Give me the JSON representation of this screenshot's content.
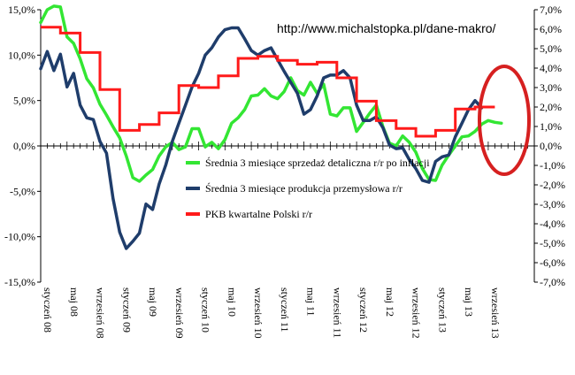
{
  "annotation_url": "http://www.michalstopka.pl/dane-makro/",
  "colors": {
    "retail": "#33e633",
    "production": "#1f3d6b",
    "gdp": "#ff1a1a",
    "ellipse": "#d62020",
    "axis": "#000000",
    "background": "#ffffff"
  },
  "chart_data": {
    "type": "line",
    "title": "",
    "xlabel": "",
    "ylabel": "",
    "x_tick_labels": [
      "styczeń 08",
      "maj 08",
      "wrzesień 08",
      "styczeń 09",
      "maj 09",
      "wrzesień 09",
      "styczeń 10",
      "maj 10",
      "wrzesień 10",
      "styczeń 11",
      "maj 11",
      "wrzesień 11",
      "styczeń 12",
      "maj 12",
      "wrzesień 12",
      "styczeń 13",
      "maj 13",
      "wrzesień 13"
    ],
    "x_tick_months": [
      0,
      4,
      8,
      12,
      16,
      20,
      24,
      28,
      32,
      36,
      40,
      44,
      48,
      52,
      56,
      60,
      64,
      68
    ],
    "x_range_months": [
      0,
      75
    ],
    "y_left": {
      "range": [
        -15,
        15
      ],
      "step": 5,
      "tick_labels": [
        "-15,0%",
        "-10,0%",
        "-5,0%",
        "0,0%",
        "5,0%",
        "10,0%",
        "15,0%"
      ]
    },
    "y_right": {
      "range": [
        -7,
        7
      ],
      "step": 1,
      "tick_labels": [
        "-7,0%",
        "-6,0%",
        "-5,0%",
        "-4,0%",
        "-3,0%",
        "-2,0%",
        "-1,0%",
        "0,0%",
        "1,0%",
        "2,0%",
        "3,0%",
        "4,0%",
        "5,0%",
        "6,0%",
        "7,0%"
      ]
    },
    "grid": false,
    "legend_position": "center",
    "series": [
      {
        "name": "Średnia 3 miesiące sprzedaż detaliczna r/r po inflacji",
        "axis": "left",
        "color_key": "retail",
        "start_month": 0,
        "values": [
          13.6,
          15.0,
          15.4,
          15.3,
          12.0,
          11.3,
          9.6,
          7.4,
          6.4,
          4.6,
          3.4,
          2.1,
          0.9,
          -1.1,
          -3.5,
          -3.9,
          -3.2,
          -2.6,
          -1.1,
          -0.1,
          0.4,
          -0.4,
          -0.1,
          1.9,
          1.9,
          -0.1,
          0.4,
          -0.3,
          0.7,
          2.5,
          3.1,
          4.0,
          5.5,
          5.6,
          6.3,
          5.5,
          5.2,
          6.0,
          7.5,
          6.1,
          5.6,
          7.0,
          5.8,
          6.8,
          3.5,
          3.3,
          4.2,
          4.2,
          1.6,
          2.6,
          3.6,
          4.5,
          2.1,
          0.3,
          0.0,
          1.1,
          0.4,
          -0.7,
          -2.5,
          -3.7,
          -3.8,
          -2.1,
          -1.0,
          0.0,
          1.0,
          1.1,
          1.6,
          2.4,
          2.8,
          2.6,
          2.5
        ]
      },
      {
        "name": "Średnia 3 miesiące produkcja przemysłowa r/r",
        "axis": "left",
        "color_key": "production",
        "start_month": 0,
        "values": [
          8.5,
          10.4,
          8.3,
          10.1,
          6.5,
          8.0,
          4.5,
          3.1,
          2.9,
          0.5,
          -0.8,
          -5.8,
          -9.5,
          -11.3,
          -10.5,
          -9.6,
          -6.4,
          -7.0,
          -4.2,
          -2.1,
          0.5,
          2.5,
          4.5,
          6.5,
          8.0,
          10.0,
          10.8,
          12.0,
          12.8,
          13.0,
          13.0,
          11.8,
          10.5,
          10.0,
          10.5,
          10.8,
          9.5,
          8.2,
          7.0,
          5.8,
          3.5,
          4.0,
          5.5,
          7.5,
          7.8,
          7.8,
          8.3,
          7.5,
          4.5,
          2.8,
          2.8,
          3.2,
          2.0,
          0.1,
          -0.3,
          -0.2,
          -1.5,
          -2.5,
          -3.8,
          -4.0,
          -1.7,
          -1.2,
          -1.0,
          1.0,
          2.5,
          4.0,
          5.0,
          4.2
        ]
      },
      {
        "name": "PKB kwartalne Polski r/r",
        "axis": "right",
        "color_key": "gdp",
        "quarter_start_months": [
          0,
          3,
          6,
          9,
          12,
          15,
          18,
          21,
          24,
          27,
          30,
          33,
          36,
          39,
          42,
          45,
          48,
          51,
          54,
          57,
          60,
          63,
          66
        ],
        "values": [
          6.1,
          5.8,
          4.8,
          2.9,
          0.8,
          1.1,
          1.7,
          3.1,
          3.0,
          3.6,
          4.5,
          4.6,
          4.4,
          4.2,
          4.3,
          3.5,
          2.3,
          1.3,
          0.9,
          0.5,
          0.8,
          1.9,
          2.0
        ],
        "last_end_month": 69
      }
    ]
  }
}
